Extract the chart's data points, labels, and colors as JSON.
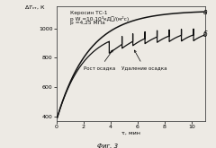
{
  "annotation_kerosene": "Керосин ТС-1",
  "annotation_pW": "p W =10·10³кД䍪/(м²с)",
  "annotation_p": "p =4,25 МПа",
  "label_a": "а",
  "label_b": "б",
  "label_rost": "Рост осадка",
  "label_udalenie": "Удаление осадка",
  "fig_label": "Фиг. 3",
  "xlabel": "τ, мин",
  "xlim": [
    0,
    11
  ],
  "ylim": [
    370,
    1150
  ],
  "yticks": [
    400,
    600,
    800,
    1000
  ],
  "xticks": [
    0,
    2,
    4,
    6,
    8,
    10
  ],
  "background_color": "#edeae4",
  "curve_color": "#111111",
  "curve_a_asymptote": 1120,
  "curve_a_rate": 0.42,
  "curve_a_base": 380,
  "curve_b_asymptote": 1000,
  "curve_b_rate": 0.5,
  "curve_b_base": 380,
  "sawtooth_start": 3.8,
  "drop_times": [
    3.9,
    4.85,
    5.65,
    6.55,
    7.45,
    8.35,
    9.25,
    10.15
  ],
  "drop_amount": 80,
  "regrowth_rate": 0.8
}
